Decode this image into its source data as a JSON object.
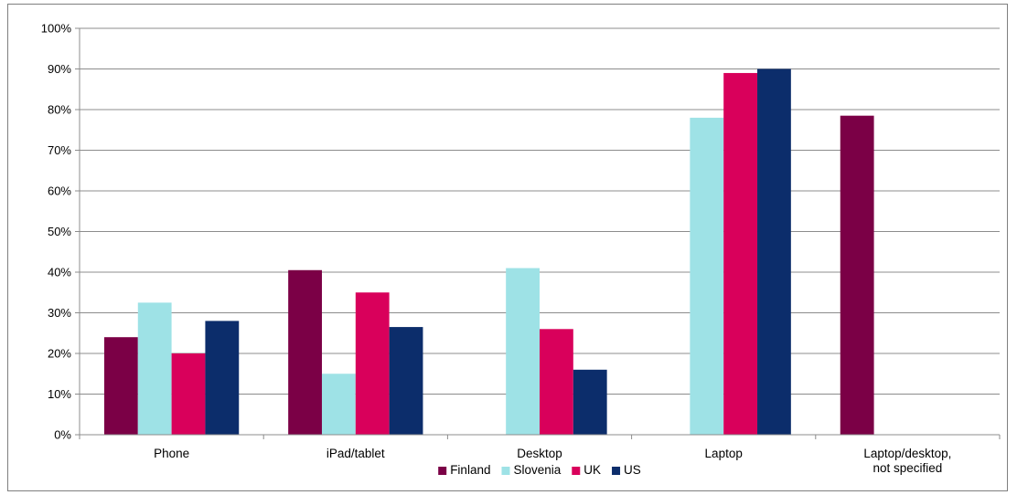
{
  "chart_data": {
    "type": "bar",
    "categories": [
      "Phone",
      "iPad/tablet",
      "Desktop",
      "Laptop",
      "Laptop/desktop,\nnot specified"
    ],
    "series": [
      {
        "name": "Finland",
        "color": "#7b0046",
        "values": [
          24,
          40.5,
          null,
          null,
          78.5
        ]
      },
      {
        "name": "Slovenia",
        "color": "#9ee2e6",
        "values": [
          32.5,
          15,
          41,
          78,
          null
        ]
      },
      {
        "name": "UK",
        "color": "#d9005b",
        "values": [
          20,
          35,
          26,
          89,
          null
        ]
      },
      {
        "name": "US",
        "color": "#0c2d6b",
        "values": [
          28,
          26.5,
          16,
          90,
          null
        ]
      }
    ],
    "ylim": [
      0,
      100
    ],
    "yticks": [
      0,
      10,
      20,
      30,
      40,
      50,
      60,
      70,
      80,
      90,
      100
    ],
    "ytick_labels": [
      "0%",
      "10%",
      "20%",
      "30%",
      "40%",
      "50%",
      "60%",
      "70%",
      "80%",
      "90%",
      "100%"
    ],
    "title": "",
    "xlabel": "",
    "ylabel": "",
    "grid": "horizontal",
    "legend": "bottom-center"
  }
}
